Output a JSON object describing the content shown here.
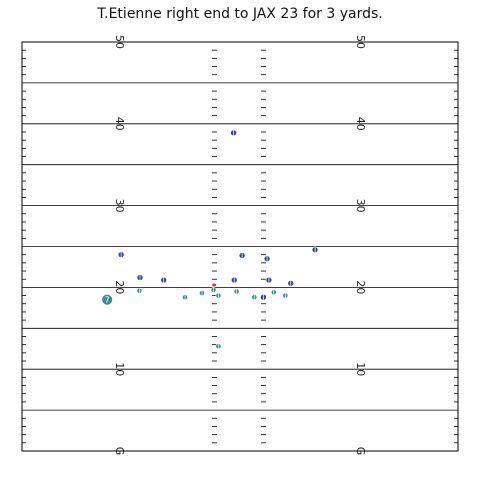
{
  "chart_data": {
    "type": "scatter",
    "title": "T.Etienne right end to JAX 23 for 3 yards.",
    "xlabel": "",
    "ylabel": "",
    "field": {
      "ylim": [
        0,
        50
      ],
      "major_lines": [
        0,
        5,
        10,
        15,
        20,
        25,
        30,
        35,
        40,
        45,
        50
      ],
      "yard_labels": [
        {
          "y": 0,
          "text": "G"
        },
        {
          "y": 10,
          "text": "10"
        },
        {
          "y": 20,
          "text": "20"
        },
        {
          "y": 30,
          "text": "30"
        },
        {
          "y": 40,
          "text": "40"
        },
        {
          "y": 50,
          "text": "50"
        }
      ]
    },
    "colors": {
      "offense": "#3d8b96",
      "defense": "#3b4a8c",
      "ball": "#e03030",
      "lines": "#000000"
    },
    "players": [
      {
        "team": "defense",
        "x": 22.8,
        "y": 38.9,
        "label": ""
      },
      {
        "team": "defense",
        "x": 4.3,
        "y": 24.0,
        "label": ""
      },
      {
        "team": "defense",
        "x": 7.4,
        "y": 21.2,
        "label": ""
      },
      {
        "team": "defense",
        "x": 11.3,
        "y": 20.9,
        "label": ""
      },
      {
        "team": "defense",
        "x": 22.9,
        "y": 20.9,
        "label": ""
      },
      {
        "team": "defense",
        "x": 24.2,
        "y": 23.9,
        "label": ""
      },
      {
        "team": "defense",
        "x": 28.3,
        "y": 23.5,
        "label": ""
      },
      {
        "team": "defense",
        "x": 28.6,
        "y": 20.9,
        "label": ""
      },
      {
        "team": "defense",
        "x": 32.2,
        "y": 20.5,
        "label": ""
      },
      {
        "team": "defense",
        "x": 36.2,
        "y": 24.6,
        "label": ""
      },
      {
        "team": "defense",
        "x": 27.7,
        "y": 18.8,
        "label": ""
      },
      {
        "team": "offense",
        "x": 7.3,
        "y": 19.6,
        "label": ""
      },
      {
        "team": "offense",
        "x": 14.8,
        "y": 18.8,
        "label": ""
      },
      {
        "team": "offense",
        "x": 17.6,
        "y": 19.3,
        "label": ""
      },
      {
        "team": "offense",
        "x": 19.5,
        "y": 19.7,
        "label": ""
      },
      {
        "team": "offense",
        "x": 20.3,
        "y": 19.0,
        "label": ""
      },
      {
        "team": "offense",
        "x": 23.3,
        "y": 19.5,
        "label": ""
      },
      {
        "team": "offense",
        "x": 26.2,
        "y": 18.8,
        "label": ""
      },
      {
        "team": "offense",
        "x": 29.4,
        "y": 19.4,
        "label": ""
      },
      {
        "team": "offense",
        "x": 31.3,
        "y": 19.0,
        "label": ""
      },
      {
        "team": "offense",
        "x": 20.3,
        "y": 12.8,
        "label": ""
      },
      {
        "team": "offense",
        "x": 2.0,
        "y": 18.5,
        "label": "7"
      }
    ],
    "ball": {
      "x": 19.6,
      "y": 20.3
    }
  }
}
